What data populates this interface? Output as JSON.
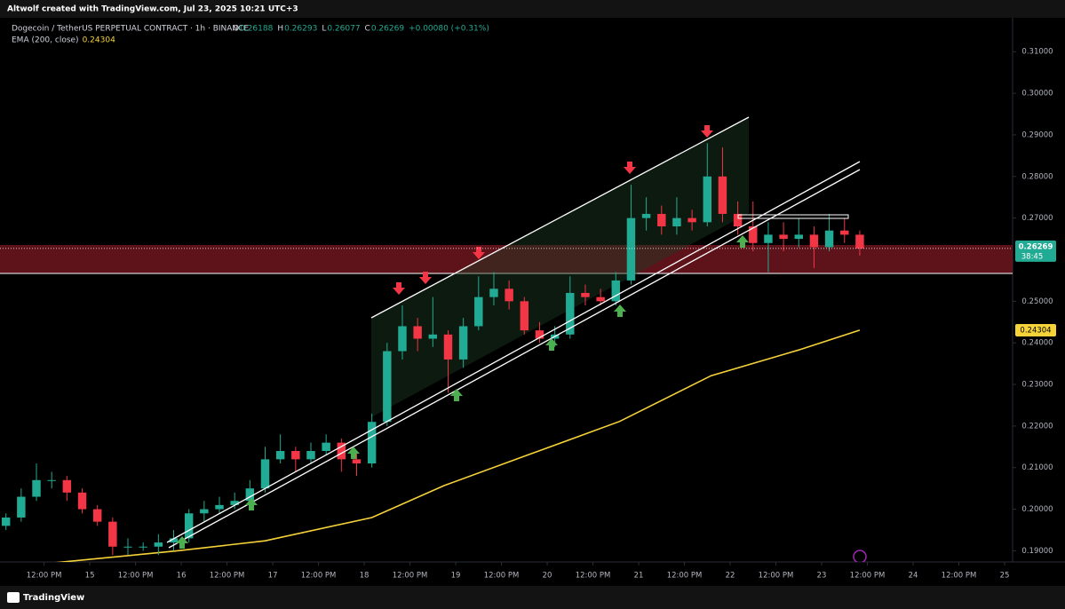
{
  "header": {
    "credit": "Altwolf created with TradingView.com, Jul 23, 2025 10:21 UTC+3"
  },
  "footer": {
    "brand": "TradingView"
  },
  "chart_data": {
    "type": "candlestick",
    "title": "Dogecoin / TetherUS PERPETUAL CONTRACT · 1h · BINANCE",
    "ohlc_legend": [
      {
        "key": "O",
        "value": 0.26188
      },
      {
        "key": "H",
        "value": 0.26293
      },
      {
        "key": "L",
        "value": 0.26077
      },
      {
        "key": "C",
        "value": 0.26269
      }
    ],
    "change": "+0.00080 (+0.31%)",
    "up_color": "#22ab94",
    "down_color": "#f23645",
    "x": [
      2,
      6,
      10,
      14,
      18,
      22,
      26,
      30,
      34,
      38,
      42,
      46,
      50,
      54,
      58,
      62,
      66,
      70,
      74,
      78,
      82,
      86,
      90,
      94,
      98,
      102,
      106,
      110,
      114,
      118,
      122,
      126,
      130,
      134,
      138,
      142,
      146,
      150,
      154,
      158,
      162,
      166,
      170,
      174,
      178,
      182,
      186,
      190,
      194,
      198,
      202,
      206,
      210,
      214,
      218,
      222,
      226
    ],
    "open": [
      0.196,
      0.198,
      0.203,
      0.207,
      0.207,
      0.204,
      0.2,
      0.197,
      0.191,
      0.191,
      0.191,
      0.192,
      0.193,
      0.199,
      0.2,
      0.201,
      0.202,
      0.205,
      0.212,
      0.214,
      0.212,
      0.214,
      0.216,
      0.212,
      0.211,
      0.221,
      0.238,
      0.244,
      0.241,
      0.242,
      0.236,
      0.244,
      0.251,
      0.253,
      0.25,
      0.243,
      0.241,
      0.242,
      0.252,
      0.251,
      0.25,
      0.255,
      0.27,
      0.271,
      0.268,
      0.27,
      0.269,
      0.28,
      0.271,
      0.268,
      0.264,
      0.266,
      0.265,
      0.266,
      0.263,
      0.267,
      0.266
    ],
    "high": [
      0.199,
      0.205,
      0.211,
      0.209,
      0.208,
      0.205,
      0.201,
      0.198,
      0.193,
      0.192,
      0.194,
      0.195,
      0.2,
      0.202,
      0.203,
      0.204,
      0.207,
      0.215,
      0.218,
      0.215,
      0.216,
      0.218,
      0.217,
      0.214,
      0.223,
      0.24,
      0.249,
      0.246,
      0.251,
      0.243,
      0.246,
      0.256,
      0.257,
      0.255,
      0.251,
      0.245,
      0.244,
      0.256,
      0.254,
      0.253,
      0.257,
      0.278,
      0.275,
      0.273,
      0.275,
      0.272,
      0.288,
      0.287,
      0.274,
      0.274,
      0.269,
      0.269,
      0.27,
      0.268,
      0.271,
      0.27,
      0.267
    ],
    "low": [
      0.195,
      0.197,
      0.202,
      0.205,
      0.202,
      0.199,
      0.196,
      0.189,
      0.189,
      0.19,
      0.189,
      0.19,
      0.192,
      0.197,
      0.199,
      0.2,
      0.201,
      0.204,
      0.211,
      0.209,
      0.211,
      0.213,
      0.209,
      0.208,
      0.21,
      0.22,
      0.236,
      0.238,
      0.239,
      0.228,
      0.234,
      0.243,
      0.249,
      0.248,
      0.242,
      0.24,
      0.239,
      0.241,
      0.249,
      0.249,
      0.249,
      0.254,
      0.267,
      0.266,
      0.266,
      0.267,
      0.268,
      0.269,
      0.266,
      0.262,
      0.257,
      0.262,
      0.263,
      0.258,
      0.262,
      0.264,
      0.261
    ],
    "close": [
      0.198,
      0.203,
      0.207,
      0.207,
      0.204,
      0.2,
      0.197,
      0.191,
      0.191,
      0.191,
      0.192,
      0.193,
      0.199,
      0.2,
      0.201,
      0.202,
      0.205,
      0.212,
      0.214,
      0.212,
      0.214,
      0.216,
      0.212,
      0.211,
      0.221,
      0.238,
      0.244,
      0.241,
      0.242,
      0.236,
      0.244,
      0.251,
      0.253,
      0.25,
      0.243,
      0.241,
      0.242,
      0.252,
      0.251,
      0.25,
      0.255,
      0.27,
      0.271,
      0.268,
      0.27,
      0.269,
      0.28,
      0.271,
      0.268,
      0.264,
      0.266,
      0.265,
      0.266,
      0.263,
      0.267,
      0.266,
      0.26269
    ],
    "last_price": 0.26269,
    "countdown": "38:45",
    "ema": {
      "name": "EMA (200, close)",
      "last": 0.24304,
      "color": "#f7d33a",
      "x": [
        0,
        47,
        70,
        98,
        117,
        140,
        163,
        187,
        210,
        226
      ],
      "values": [
        0.1858,
        0.19,
        0.1924,
        0.198,
        0.2057,
        0.2134,
        0.2211,
        0.2321,
        0.2383,
        0.24304
      ]
    },
    "xlim": [
      0.44,
      266.1
    ],
    "ylim": [
      0.18732,
      0.31816
    ],
    "xticks": [
      {
        "value": 12,
        "label": "12:00 PM"
      },
      {
        "value": 24,
        "label": "15"
      },
      {
        "value": 36,
        "label": "12:00 PM"
      },
      {
        "value": 48,
        "label": "16"
      },
      {
        "value": 60,
        "label": "12:00 PM"
      },
      {
        "value": 72,
        "label": "17"
      },
      {
        "value": 84,
        "label": "12:00 PM"
      },
      {
        "value": 96,
        "label": "18"
      },
      {
        "value": 108,
        "label": "12:00 PM"
      },
      {
        "value": 120,
        "label": "19"
      },
      {
        "value": 132,
        "label": "12:00 PM"
      },
      {
        "value": 144,
        "label": "20"
      },
      {
        "value": 156,
        "label": "12:00 PM"
      },
      {
        "value": 168,
        "label": "21"
      },
      {
        "value": 180,
        "label": "12:00 PM"
      },
      {
        "value": 192,
        "label": "22"
      },
      {
        "value": 204,
        "label": "12:00 PM"
      },
      {
        "value": 216,
        "label": "23"
      },
      {
        "value": 228,
        "label": "12:00 PM"
      },
      {
        "value": 240,
        "label": "24"
      },
      {
        "value": 252,
        "label": "12:00 PM"
      },
      {
        "value": 264,
        "label": "25"
      }
    ],
    "yticks": [
      {
        "value": 0.19,
        "label": "0.19000"
      },
      {
        "value": 0.2,
        "label": "0.20000"
      },
      {
        "value": 0.21,
        "label": "0.21000"
      },
      {
        "value": 0.22,
        "label": "0.22000"
      },
      {
        "value": 0.23,
        "label": "0.23000"
      },
      {
        "value": 0.24,
        "label": "0.24000"
      },
      {
        "value": 0.25,
        "label": "0.25000"
      },
      {
        "value": 0.27,
        "label": "0.27000"
      },
      {
        "value": 0.28,
        "label": "0.28000"
      },
      {
        "value": 0.29,
        "label": "0.29000"
      },
      {
        "value": 0.3,
        "label": "0.30000"
      },
      {
        "value": 0.31,
        "label": "0.31000"
      }
    ]
  }
}
